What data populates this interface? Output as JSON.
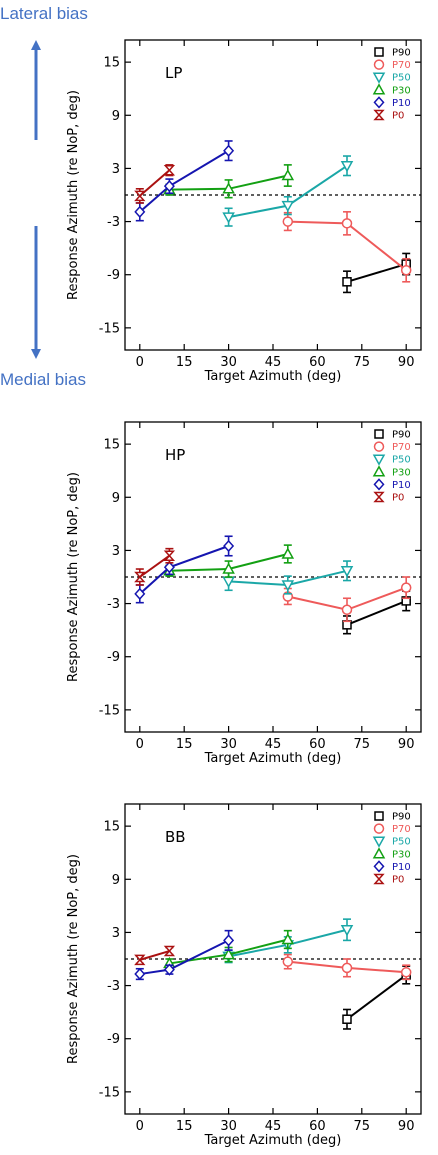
{
  "annotations": {
    "lateral": "Lateral bias",
    "medial": "Medial bias"
  },
  "colors": {
    "P90": "#000000",
    "P70": "#ee5a5a",
    "P50": "#1aa7a7",
    "P30": "#13a013",
    "P10": "#1515b0",
    "P0": "#aa1111",
    "arrow": "#4472c4"
  },
  "chart_data": [
    {
      "type": "line",
      "panel_label": "LP",
      "xlabel": "Target Azimuth (deg)",
      "ylabel": "Response Azimuth (re NoP, deg)",
      "xlim": [
        -5,
        95
      ],
      "ylim": [
        -17.5,
        17.5
      ],
      "xticks": [
        0,
        15,
        30,
        45,
        60,
        75,
        90
      ],
      "xtick_labels": [
        "0",
        "15",
        "30",
        "45",
        "60",
        "75",
        "90"
      ],
      "yticks": [
        -15,
        -9,
        -3,
        3,
        9,
        15
      ],
      "ytick_labels": [
        "-15",
        "-9",
        "-3",
        "3",
        "9",
        "15"
      ],
      "reference_line": 0,
      "legend_position": "top-right",
      "series": [
        {
          "name": "P90",
          "marker": "square",
          "x": [
            70,
            90
          ],
          "y": [
            -9.8,
            -7.8
          ],
          "err": [
            1.2,
            1.2
          ]
        },
        {
          "name": "P70",
          "marker": "circle",
          "x": [
            50,
            70,
            90
          ],
          "y": [
            -3.0,
            -3.2,
            -8.5
          ],
          "err": [
            1.0,
            1.3,
            1.3
          ]
        },
        {
          "name": "P50",
          "marker": "triangle-down",
          "x": [
            30,
            50,
            70
          ],
          "y": [
            -2.5,
            -1.2,
            3.3
          ],
          "err": [
            1.0,
            1.0,
            1.1
          ]
        },
        {
          "name": "P30",
          "marker": "triangle-up",
          "x": [
            10,
            30,
            50
          ],
          "y": [
            0.6,
            0.7,
            2.2
          ],
          "err": [
            0.6,
            1.0,
            1.2
          ]
        },
        {
          "name": "P10",
          "marker": "diamond",
          "x": [
            0,
            10,
            30
          ],
          "y": [
            -1.9,
            1.0,
            5.0
          ],
          "err": [
            1.0,
            0.8,
            1.1
          ]
        },
        {
          "name": "P0",
          "marker": "hourglass",
          "x": [
            0,
            10
          ],
          "y": [
            -0.1,
            2.8
          ],
          "err": [
            0.8,
            0.6
          ]
        }
      ]
    },
    {
      "type": "line",
      "panel_label": "HP",
      "xlabel": "Target Azimuth (deg)",
      "ylabel": "Response Azimuth (re NoP, deg)",
      "xlim": [
        -5,
        95
      ],
      "ylim": [
        -17.5,
        17.5
      ],
      "xticks": [
        0,
        15,
        30,
        45,
        60,
        75,
        90
      ],
      "xtick_labels": [
        "0",
        "15",
        "30",
        "45",
        "60",
        "75",
        "90"
      ],
      "yticks": [
        -15,
        -9,
        -3,
        3,
        9,
        15
      ],
      "ytick_labels": [
        "-15",
        "-9",
        "-3",
        "3",
        "9",
        "15"
      ],
      "reference_line": 0,
      "legend_position": "top-right",
      "series": [
        {
          "name": "P90",
          "marker": "square",
          "x": [
            70,
            90
          ],
          "y": [
            -5.4,
            -2.7
          ],
          "err": [
            1.0,
            1.1
          ]
        },
        {
          "name": "P70",
          "marker": "circle",
          "x": [
            50,
            70,
            90
          ],
          "y": [
            -2.2,
            -3.7,
            -1.2
          ],
          "err": [
            0.9,
            1.3,
            1.2
          ]
        },
        {
          "name": "P50",
          "marker": "triangle-down",
          "x": [
            30,
            50,
            70
          ],
          "y": [
            -0.5,
            -0.9,
            0.7
          ],
          "err": [
            1.0,
            1.0,
            1.1
          ]
        },
        {
          "name": "P30",
          "marker": "triangle-up",
          "x": [
            10,
            30,
            50
          ],
          "y": [
            0.7,
            0.9,
            2.6
          ],
          "err": [
            0.6,
            0.9,
            1.0
          ]
        },
        {
          "name": "P10",
          "marker": "diamond",
          "x": [
            0,
            10,
            30
          ],
          "y": [
            -1.9,
            1.1,
            3.5
          ],
          "err": [
            1.0,
            0.8,
            1.1
          ]
        },
        {
          "name": "P0",
          "marker": "hourglass",
          "x": [
            0,
            10
          ],
          "y": [
            0.0,
            2.4
          ],
          "err": [
            0.9,
            0.8
          ]
        }
      ]
    },
    {
      "type": "line",
      "panel_label": "BB",
      "xlabel": "Target Azimuth (deg)",
      "ylabel": "Response Azimuth (re NoP, deg)",
      "xlim": [
        -5,
        95
      ],
      "ylim": [
        -17.5,
        17.5
      ],
      "xticks": [
        0,
        15,
        30,
        45,
        60,
        75,
        90
      ],
      "xtick_labels": [
        "0",
        "15",
        "30",
        "45",
        "60",
        "75",
        "90"
      ],
      "yticks": [
        -15,
        -9,
        -3,
        3,
        9,
        15
      ],
      "ytick_labels": [
        "-15",
        "-9",
        "-3",
        "3",
        "9",
        "15"
      ],
      "reference_line": 0,
      "legend_position": "top-right",
      "series": [
        {
          "name": "P90",
          "marker": "square",
          "x": [
            70,
            90
          ],
          "y": [
            -6.8,
            -1.8
          ],
          "err": [
            1.1,
            1.0
          ]
        },
        {
          "name": "P70",
          "marker": "circle",
          "x": [
            50,
            70,
            90
          ],
          "y": [
            -0.3,
            -1.0,
            -1.5
          ],
          "err": [
            0.8,
            1.0,
            0.8
          ]
        },
        {
          "name": "P50",
          "marker": "triangle-down",
          "x": [
            30,
            50,
            70
          ],
          "y": [
            0.3,
            1.6,
            3.3
          ],
          "err": [
            0.7,
            0.9,
            1.2
          ]
        },
        {
          "name": "P30",
          "marker": "triangle-up",
          "x": [
            10,
            30,
            50
          ],
          "y": [
            -0.5,
            0.5,
            2.2
          ],
          "err": [
            0.5,
            0.8,
            1.0
          ]
        },
        {
          "name": "P10",
          "marker": "diamond",
          "x": [
            0,
            10,
            30
          ],
          "y": [
            -1.7,
            -1.2,
            2.1
          ],
          "err": [
            0.6,
            0.5,
            1.1
          ]
        },
        {
          "name": "P0",
          "marker": "hourglass",
          "x": [
            0,
            10
          ],
          "y": [
            -0.1,
            0.9
          ],
          "err": [
            0.4,
            0.4
          ]
        }
      ]
    }
  ]
}
